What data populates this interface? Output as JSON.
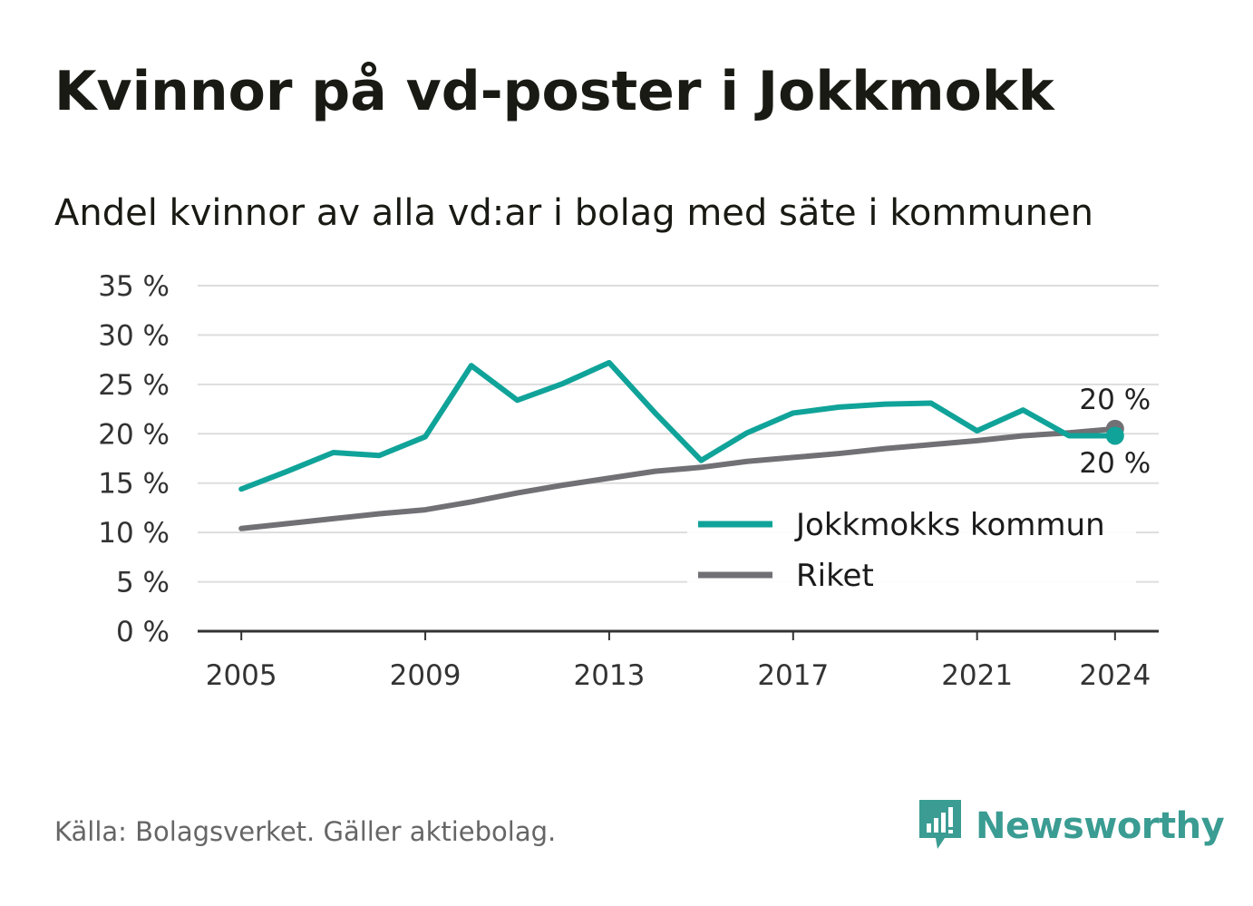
{
  "header": {
    "title": "Kvinnor på vd-poster i Jokkmokk",
    "subtitle": "Andel kvinnor av alla vd:ar i bolag med säte i kommunen"
  },
  "footer": {
    "source": "Källa: Bolagsverket. Gäller aktiebolag.",
    "brand": "Newsworthy",
    "brand_icon": "newsworthy-logo-icon"
  },
  "colors": {
    "jokkmokk": "#10a399",
    "riket": "#717075",
    "grid": "#dddddd",
    "axis": "#333333",
    "brand": "#3a9c92"
  },
  "chart_data": {
    "type": "line",
    "x": [
      2005,
      2006,
      2007,
      2008,
      2009,
      2010,
      2011,
      2012,
      2013,
      2014,
      2015,
      2016,
      2017,
      2018,
      2019,
      2020,
      2021,
      2022,
      2023,
      2024
    ],
    "series": [
      {
        "name": "Jokkmokks kommun",
        "color": "#10a399",
        "values": [
          14.4,
          16.2,
          18.1,
          17.8,
          19.7,
          26.9,
          23.4,
          25.1,
          27.2,
          22.1,
          17.3,
          20.1,
          22.1,
          22.7,
          23.0,
          23.1,
          20.3,
          22.4,
          19.8,
          19.8
        ],
        "end_label": "20 %"
      },
      {
        "name": "Riket",
        "color": "#717075",
        "values": [
          10.4,
          10.9,
          11.4,
          11.9,
          12.3,
          13.1,
          14.0,
          14.8,
          15.5,
          16.2,
          16.6,
          17.2,
          17.6,
          18.0,
          18.5,
          18.9,
          19.3,
          19.8,
          20.1,
          20.5
        ],
        "end_label": "20 %"
      }
    ],
    "x_ticks": [
      2005,
      2009,
      2013,
      2017,
      2021,
      2024
    ],
    "y_ticks": [
      0,
      5,
      10,
      15,
      20,
      25,
      30,
      35
    ],
    "y_tick_suffix": " %",
    "ylim": [
      0,
      35
    ],
    "xlim": [
      2004.05,
      2024.95
    ],
    "grid": true,
    "legend_position": "bottom-right inside plot"
  }
}
